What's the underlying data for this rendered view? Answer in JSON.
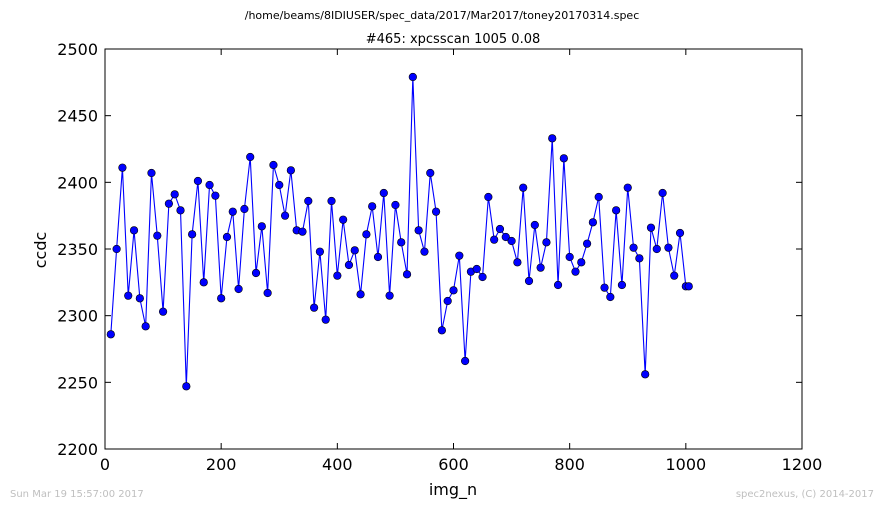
{
  "figure": {
    "file_path": "/home/beams/8IDIUSER/spec_data/2017/Mar2017/toney20170314.spec",
    "timestamp": "Sun Mar 19 15:57:00 2017",
    "credit": "spec2nexus, (C) 2014-2017"
  },
  "colors": {
    "series": "#0000ff",
    "marker_edge": "#000000",
    "axes": "#000000",
    "footer_text": "#bfbfbf"
  },
  "chart_data": {
    "type": "line",
    "title": "#465: xpcsscan 1005 0.08",
    "xlabel": "img_n",
    "ylabel": "ccdc",
    "xlim": [
      0,
      1200
    ],
    "ylim": [
      2200,
      2500
    ],
    "xticks": [
      0,
      200,
      400,
      600,
      800,
      1000,
      1200
    ],
    "yticks": [
      2200,
      2250,
      2300,
      2350,
      2400,
      2450,
      2500
    ],
    "grid": false,
    "marker": "circle",
    "series": [
      {
        "x": [
          10,
          20,
          30,
          40,
          50,
          60,
          70,
          80,
          90,
          100,
          110,
          120,
          130,
          140,
          150,
          160,
          170,
          180,
          190,
          200,
          210,
          220,
          230,
          240,
          250,
          260,
          270,
          280,
          290,
          300,
          310,
          320,
          330,
          340,
          350,
          360,
          370,
          380,
          390,
          400,
          410,
          420,
          430,
          440,
          450,
          460,
          470,
          480,
          490,
          500,
          510,
          520,
          530,
          540,
          550,
          560,
          570,
          580,
          590,
          600,
          610,
          620,
          630,
          640,
          650,
          660,
          670,
          680,
          690,
          700,
          710,
          720,
          730,
          740,
          750,
          760,
          770,
          780,
          790,
          800,
          810,
          820,
          830,
          840,
          850,
          860,
          870,
          880,
          890,
          900,
          910,
          920,
          930,
          940,
          950,
          960,
          970,
          980,
          990,
          1000,
          1005
        ],
        "y": [
          2286,
          2350,
          2411,
          2315,
          2364,
          2313,
          2292,
          2407,
          2360,
          2303,
          2384,
          2391,
          2379,
          2247,
          2361,
          2401,
          2325,
          2398,
          2390,
          2313,
          2359,
          2378,
          2320,
          2380,
          2419,
          2332,
          2367,
          2317,
          2413,
          2398,
          2375,
          2409,
          2364,
          2363,
          2386,
          2306,
          2348,
          2297,
          2386,
          2330,
          2372,
          2338,
          2349,
          2316,
          2361,
          2382,
          2344,
          2392,
          2315,
          2383,
          2355,
          2331,
          2479,
          2364,
          2348,
          2407,
          2378,
          2289,
          2311,
          2319,
          2345,
          2266,
          2333,
          2335,
          2329,
          2389,
          2357,
          2365,
          2359,
          2356,
          2340,
          2396,
          2326,
          2368,
          2336,
          2355,
          2433,
          2323,
          2418,
          2344,
          2333,
          2340,
          2354,
          2370,
          2389,
          2321,
          2314,
          2379,
          2323,
          2396,
          2351,
          2343,
          2256,
          2366,
          2350,
          2392,
          2351,
          2330,
          2362,
          2322,
          2322
        ]
      }
    ]
  }
}
